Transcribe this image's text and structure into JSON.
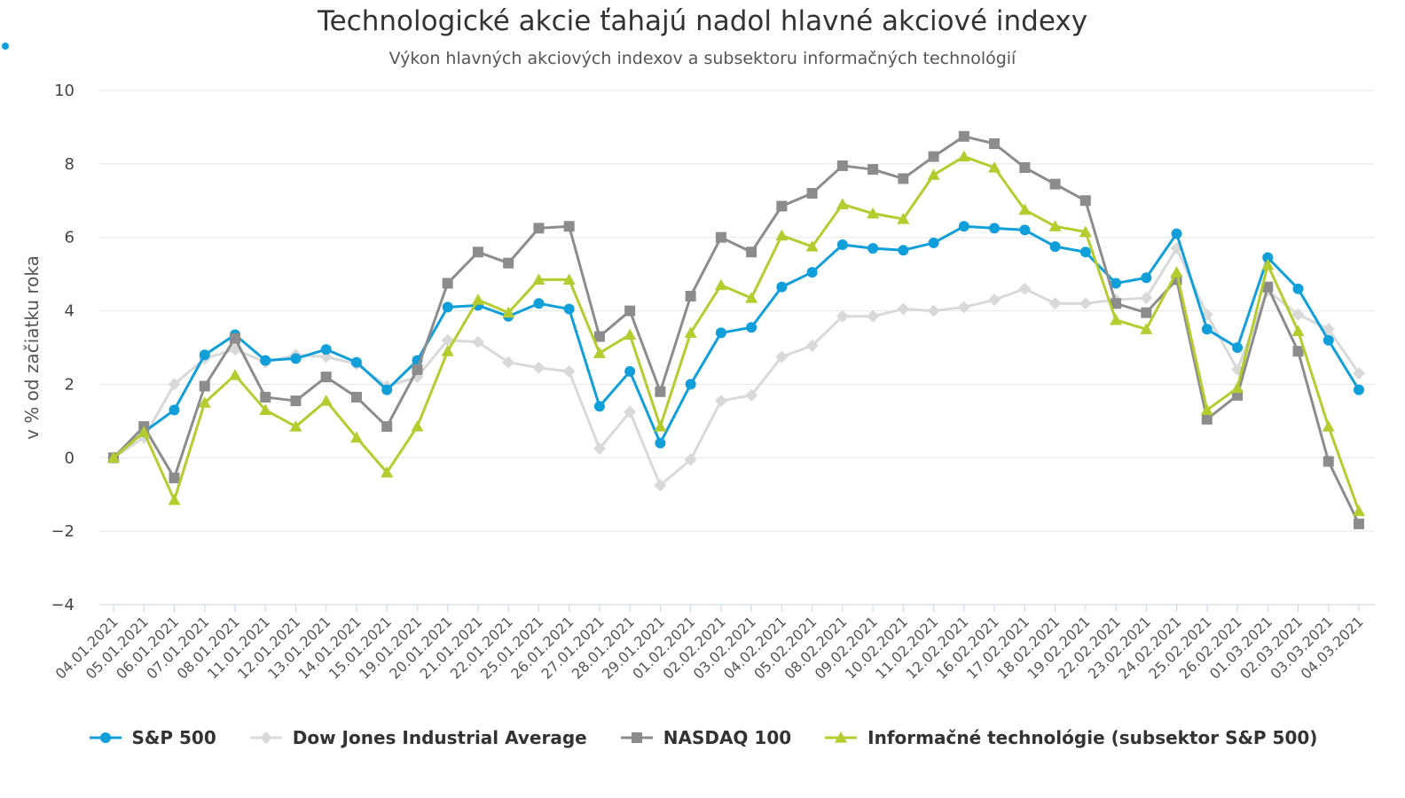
{
  "title": "Technologické akcie ťahajú nadol hlavné akciové indexy",
  "subtitle": "Výkon hlavných akciových indexov a subsektoru informačných technológií",
  "chart_data": {
    "type": "line",
    "ylabel": "v % od začiatku roka",
    "ylim": [
      -4,
      10
    ],
    "yticks": [
      "10",
      "8",
      "6",
      "4",
      "2",
      "0",
      "−2",
      "−4"
    ],
    "grid": true,
    "legend_position": "bottom",
    "categories": [
      "04.01.2021",
      "05.01.2021",
      "06.01.2021",
      "07.01.2021",
      "08.01.2021",
      "11.01.2021",
      "12.01.2021",
      "13.01.2021",
      "14.01.2021",
      "15.01.2021",
      "19.01.2021",
      "20.01.2021",
      "21.01.2021",
      "22.01.2021",
      "25.01.2021",
      "26.01.2021",
      "27.01.2021",
      "28.01.2021",
      "29.01.2021",
      "01.02.2021",
      "02.02.2021",
      "03.02.2021",
      "04.02.2021",
      "05.02.2021",
      "08.02.2021",
      "09.02.2021",
      "10.02.2021",
      "11.02.2021",
      "12.02.2021",
      "16.02.2021",
      "17.02.2021",
      "18.02.2021",
      "19.02.2021",
      "22.02.2021",
      "23.02.2021",
      "24.02.2021",
      "25.02.2021",
      "26.02.2021",
      "01.03.2021",
      "02.03.2021",
      "03.03.2021",
      "04.03.2021"
    ],
    "series": [
      {
        "name": "S&P 500",
        "color": "#109FD9",
        "marker": "circle",
        "values": [
          0,
          0.7,
          1.3,
          2.8,
          3.35,
          2.65,
          2.7,
          2.95,
          2.6,
          1.85,
          2.65,
          4.1,
          4.15,
          3.85,
          4.2,
          4.05,
          1.4,
          2.35,
          0.4,
          2.0,
          3.4,
          3.55,
          4.65,
          5.05,
          5.8,
          5.7,
          5.65,
          5.85,
          6.3,
          6.25,
          6.2,
          5.75,
          5.6,
          4.75,
          4.9,
          6.1,
          3.5,
          3.0,
          5.45,
          4.6,
          3.2,
          1.85
        ]
      },
      {
        "name": "Dow Jones Industrial Average",
        "color": "#D9D9D9",
        "marker": "diamond",
        "values": [
          0,
          0.55,
          2.0,
          2.7,
          2.95,
          2.6,
          2.8,
          2.75,
          2.55,
          1.95,
          2.2,
          3.2,
          3.15,
          2.6,
          2.45,
          2.35,
          0.25,
          1.25,
          -0.75,
          -0.05,
          1.55,
          1.7,
          2.75,
          3.05,
          3.85,
          3.85,
          4.05,
          4.0,
          4.1,
          4.3,
          4.6,
          4.2,
          4.2,
          4.3,
          4.35,
          5.7,
          3.9,
          2.4,
          4.55,
          3.9,
          3.5,
          2.3
        ]
      },
      {
        "name": "NASDAQ 100",
        "color": "#8C8C8C",
        "marker": "square",
        "values": [
          0,
          0.85,
          -0.55,
          1.95,
          3.25,
          1.65,
          1.55,
          2.2,
          1.65,
          0.85,
          2.4,
          4.75,
          5.6,
          5.3,
          6.25,
          6.3,
          3.3,
          4.0,
          1.8,
          4.4,
          6.0,
          5.6,
          6.85,
          7.2,
          7.95,
          7.85,
          7.6,
          8.2,
          8.75,
          8.55,
          7.9,
          7.45,
          7.0,
          4.2,
          3.95,
          4.85,
          1.05,
          1.7,
          4.65,
          2.9,
          -0.1,
          -1.8
        ]
      },
      {
        "name": "Informačné technológie (subsektor S&P 500)",
        "color": "#B5CC2E",
        "marker": "triangle",
        "values": [
          0,
          0.7,
          -1.15,
          1.5,
          2.25,
          1.3,
          0.85,
          1.55,
          0.55,
          -0.4,
          0.85,
          2.9,
          4.3,
          3.95,
          4.85,
          4.85,
          2.85,
          3.35,
          0.85,
          3.4,
          4.7,
          4.35,
          6.05,
          5.75,
          6.9,
          6.65,
          6.5,
          7.7,
          8.2,
          7.9,
          6.75,
          6.3,
          6.15,
          3.75,
          3.5,
          5.05,
          1.3,
          1.9,
          5.25,
          3.45,
          0.85,
          -1.45
        ]
      }
    ]
  }
}
